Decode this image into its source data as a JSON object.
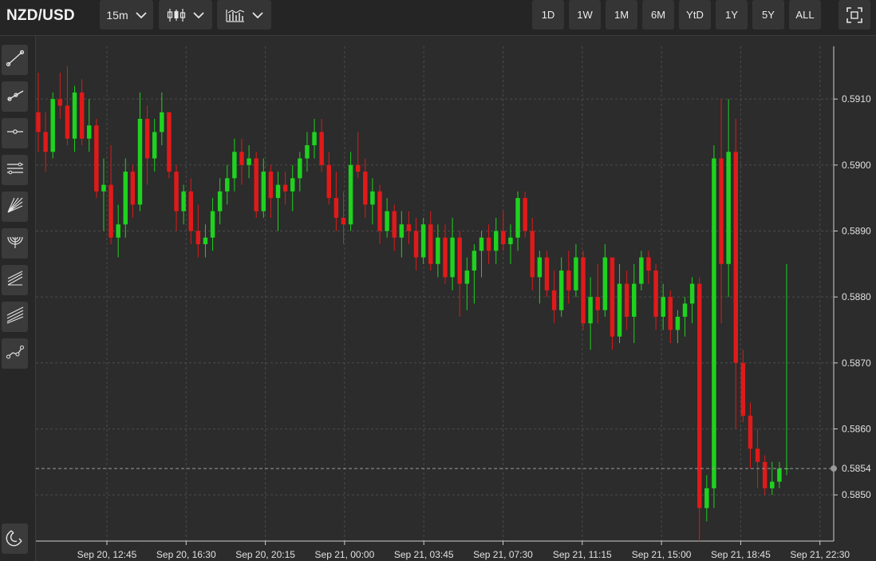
{
  "header": {
    "symbol": "NZD/USD",
    "interval": "15m",
    "chart_type_icon": "candlestick-icon",
    "indicators_icon": "indicators-icon",
    "ranges": [
      "1D",
      "1W",
      "1M",
      "6M",
      "YtD",
      "1Y",
      "5Y",
      "ALL"
    ],
    "fullscreen_icon": "fullscreen-icon"
  },
  "tools": [
    "trend-line-icon",
    "ray-icon",
    "horizontal-line-icon",
    "parallel-channel-icon",
    "fan-icon",
    "arc-icon",
    "pitchfork-icon",
    "fibonacci-icon",
    "path-icon"
  ],
  "magnet_icon": "magnet-icon",
  "colors": {
    "up": "#1fd21f",
    "down": "#e01a1a",
    "background": "#2b2c2b",
    "grid": "#4a4b4a",
    "price_line": "#9a9a9a"
  },
  "chart_data": {
    "type": "candlestick",
    "title": "",
    "xlabel": "",
    "ylabel": "",
    "ylim": [
      0.5843,
      0.5918
    ],
    "y_ticks": [
      "0.5850",
      "0.5860",
      "0.5870",
      "0.5880",
      "0.5890",
      "0.5900",
      "0.5910"
    ],
    "current_price": "0.5854",
    "x_ticks": [
      "Sep 20, 12:45",
      "Sep 20, 16:30",
      "Sep 20, 20:15",
      "Sep 21, 00:00",
      "Sep 21, 03:45",
      "Sep 21, 07:30",
      "Sep 21, 11:15",
      "Sep 21, 15:00",
      "Sep 21, 18:45",
      "Sep 21, 22:30"
    ],
    "grid": true,
    "candles_ohlc": [
      [
        0.5908,
        0.5914,
        0.5902,
        0.5905
      ],
      [
        0.5905,
        0.5908,
        0.5899,
        0.5902
      ],
      [
        0.5902,
        0.5911,
        0.5901,
        0.591
      ],
      [
        0.591,
        0.5914,
        0.5907,
        0.5909
      ],
      [
        0.5909,
        0.5915,
        0.5903,
        0.5904
      ],
      [
        0.5904,
        0.5912,
        0.5902,
        0.5911
      ],
      [
        0.5911,
        0.5913,
        0.5903,
        0.5904
      ],
      [
        0.5904,
        0.591,
        0.5902,
        0.5906
      ],
      [
        0.5906,
        0.5907,
        0.5895,
        0.5896
      ],
      [
        0.5896,
        0.5901,
        0.589,
        0.5897
      ],
      [
        0.5897,
        0.5903,
        0.5888,
        0.5889
      ],
      [
        0.5889,
        0.5894,
        0.5886,
        0.5891
      ],
      [
        0.5891,
        0.5901,
        0.5889,
        0.5899
      ],
      [
        0.5899,
        0.59,
        0.5892,
        0.5894
      ],
      [
        0.5894,
        0.5911,
        0.5893,
        0.5907
      ],
      [
        0.5907,
        0.5909,
        0.5897,
        0.5901
      ],
      [
        0.5901,
        0.5907,
        0.5899,
        0.5905
      ],
      [
        0.5905,
        0.5911,
        0.5903,
        0.5908
      ],
      [
        0.5908,
        0.5908,
        0.5898,
        0.5899
      ],
      [
        0.5899,
        0.59,
        0.589,
        0.5893
      ],
      [
        0.5893,
        0.5897,
        0.5891,
        0.5896
      ],
      [
        0.5896,
        0.5898,
        0.5888,
        0.589
      ],
      [
        0.589,
        0.5894,
        0.5886,
        0.5888
      ],
      [
        0.5888,
        0.5891,
        0.5886,
        0.5889
      ],
      [
        0.5889,
        0.5895,
        0.5887,
        0.5893
      ],
      [
        0.5893,
        0.5898,
        0.5891,
        0.5896
      ],
      [
        0.5896,
        0.59,
        0.5894,
        0.5898
      ],
      [
        0.5898,
        0.5904,
        0.5896,
        0.5902
      ],
      [
        0.5902,
        0.5904,
        0.5897,
        0.59
      ],
      [
        0.59,
        0.5903,
        0.5898,
        0.5901
      ],
      [
        0.5901,
        0.5902,
        0.5892,
        0.5893
      ],
      [
        0.5893,
        0.5901,
        0.5892,
        0.5899
      ],
      [
        0.5899,
        0.59,
        0.5892,
        0.5895
      ],
      [
        0.5895,
        0.5899,
        0.589,
        0.5897
      ],
      [
        0.5897,
        0.5899,
        0.5894,
        0.5896
      ],
      [
        0.5896,
        0.59,
        0.5893,
        0.5898
      ],
      [
        0.5898,
        0.5902,
        0.5896,
        0.5901
      ],
      [
        0.5901,
        0.5905,
        0.5899,
        0.5903
      ],
      [
        0.5903,
        0.5907,
        0.5901,
        0.5905
      ],
      [
        0.5905,
        0.5907,
        0.5899,
        0.59
      ],
      [
        0.59,
        0.5902,
        0.5894,
        0.5895
      ],
      [
        0.5895,
        0.5899,
        0.589,
        0.5892
      ],
      [
        0.5892,
        0.5896,
        0.5888,
        0.5891
      ],
      [
        0.5891,
        0.5902,
        0.589,
        0.59
      ],
      [
        0.59,
        0.5905,
        0.5898,
        0.5899
      ],
      [
        0.5899,
        0.5901,
        0.5892,
        0.5894
      ],
      [
        0.5894,
        0.5898,
        0.5891,
        0.5896
      ],
      [
        0.5896,
        0.5897,
        0.5888,
        0.589
      ],
      [
        0.589,
        0.5895,
        0.5889,
        0.5893
      ],
      [
        0.5893,
        0.5894,
        0.5887,
        0.5889
      ],
      [
        0.5889,
        0.5893,
        0.5886,
        0.5891
      ],
      [
        0.5891,
        0.5893,
        0.5888,
        0.589
      ],
      [
        0.589,
        0.5892,
        0.5884,
        0.5886
      ],
      [
        0.5886,
        0.5892,
        0.5885,
        0.5891
      ],
      [
        0.5891,
        0.5893,
        0.5884,
        0.5885
      ],
      [
        0.5885,
        0.5891,
        0.5883,
        0.5889
      ],
      [
        0.5889,
        0.5891,
        0.5882,
        0.5883
      ],
      [
        0.5883,
        0.5892,
        0.5881,
        0.5889
      ],
      [
        0.5889,
        0.589,
        0.5877,
        0.5882
      ],
      [
        0.5882,
        0.5886,
        0.5878,
        0.5884
      ],
      [
        0.5884,
        0.5888,
        0.5879,
        0.5887
      ],
      [
        0.5887,
        0.589,
        0.5883,
        0.5889
      ],
      [
        0.5889,
        0.5891,
        0.5885,
        0.5887
      ],
      [
        0.5887,
        0.5892,
        0.5885,
        0.589
      ],
      [
        0.589,
        0.5893,
        0.5887,
        0.5888
      ],
      [
        0.5888,
        0.5891,
        0.5885,
        0.5889
      ],
      [
        0.5889,
        0.5896,
        0.5887,
        0.5895
      ],
      [
        0.5895,
        0.5896,
        0.5889,
        0.589
      ],
      [
        0.589,
        0.5892,
        0.5881,
        0.5883
      ],
      [
        0.5883,
        0.5887,
        0.5879,
        0.5886
      ],
      [
        0.5886,
        0.5887,
        0.588,
        0.5881
      ],
      [
        0.5881,
        0.5884,
        0.5876,
        0.5878
      ],
      [
        0.5878,
        0.5886,
        0.5877,
        0.5884
      ],
      [
        0.5884,
        0.5887,
        0.5879,
        0.5881
      ],
      [
        0.5881,
        0.5888,
        0.588,
        0.5886
      ],
      [
        0.5886,
        0.5887,
        0.5875,
        0.5876
      ],
      [
        0.5876,
        0.5883,
        0.5872,
        0.588
      ],
      [
        0.588,
        0.5885,
        0.5876,
        0.5878
      ],
      [
        0.5878,
        0.5888,
        0.5877,
        0.5886
      ],
      [
        0.5886,
        0.5886,
        0.5872,
        0.5874
      ],
      [
        0.5874,
        0.5885,
        0.5873,
        0.5882
      ],
      [
        0.5882,
        0.5884,
        0.5875,
        0.5877
      ],
      [
        0.5877,
        0.5885,
        0.5873,
        0.5882
      ],
      [
        0.5882,
        0.5887,
        0.5881,
        0.5886
      ],
      [
        0.5886,
        0.5887,
        0.5882,
        0.5884
      ],
      [
        0.5884,
        0.5885,
        0.5875,
        0.5877
      ],
      [
        0.5877,
        0.5882,
        0.5875,
        0.588
      ],
      [
        0.588,
        0.5881,
        0.5873,
        0.5875
      ],
      [
        0.5875,
        0.5878,
        0.5873,
        0.5877
      ],
      [
        0.5877,
        0.588,
        0.5874,
        0.5879
      ],
      [
        0.5879,
        0.5883,
        0.5876,
        0.5882
      ],
      [
        0.5882,
        0.5883,
        0.5843,
        0.5848
      ],
      [
        0.5848,
        0.5853,
        0.5846,
        0.5851
      ],
      [
        0.5851,
        0.5903,
        0.5848,
        0.5901
      ],
      [
        0.5901,
        0.591,
        0.5876,
        0.5885
      ],
      [
        0.5885,
        0.591,
        0.588,
        0.5902
      ],
      [
        0.5902,
        0.5907,
        0.586,
        0.587
      ],
      [
        0.587,
        0.5872,
        0.5861,
        0.5862
      ],
      [
        0.5862,
        0.5864,
        0.5854,
        0.5857
      ],
      [
        0.5857,
        0.586,
        0.5851,
        0.5855
      ],
      [
        0.5855,
        0.5856,
        0.585,
        0.5851
      ],
      [
        0.5851,
        0.5855,
        0.585,
        0.5852
      ],
      [
        0.5852,
        0.5855,
        0.5851,
        0.5854
      ],
      [
        0.5854,
        0.5885,
        0.5853,
        0.5854
      ]
    ]
  }
}
